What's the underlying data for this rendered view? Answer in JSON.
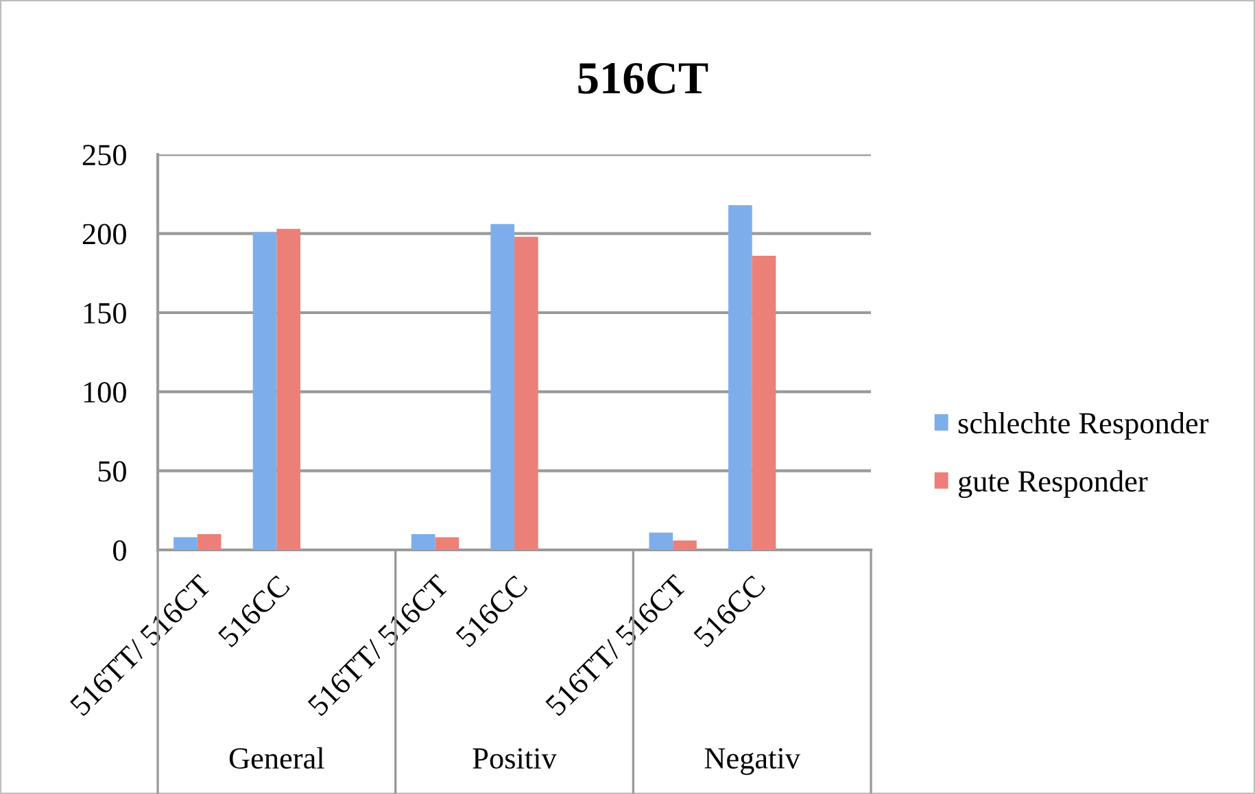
{
  "chart_data": {
    "type": "bar",
    "title": "516CT",
    "categories": [
      "516TT/ 516CT",
      "516CC",
      null,
      "516TT/ 516CT",
      "516CC",
      null,
      "516TT/ 516CT",
      "516CC",
      null
    ],
    "series": [
      {
        "name": "schlechte Responder",
        "color": "#7daeeb",
        "values": [
          8,
          201,
          null,
          10,
          206,
          null,
          11,
          218,
          null
        ]
      },
      {
        "name": "gute Responder",
        "color": "#ec8078",
        "values": [
          10,
          203,
          null,
          8,
          198,
          null,
          6,
          186,
          null
        ]
      }
    ],
    "ylim": [
      0,
      250
    ],
    "yticks": [
      0,
      50,
      100,
      150,
      200,
      250
    ],
    "grid": "y",
    "legend": "right",
    "annotations": [
      "General",
      "Positiv",
      "Negativ"
    ]
  }
}
